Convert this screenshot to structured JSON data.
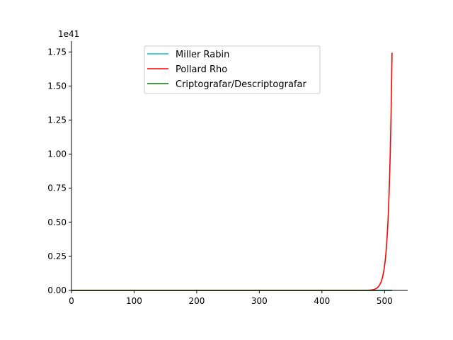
{
  "chart_data": {
    "type": "line",
    "title": "",
    "xlabel": "",
    "ylabel": "",
    "offset_text": "1e41",
    "xlim": [
      0,
      537
    ],
    "ylim": [
      0,
      1.83
    ],
    "xticks": [
      0,
      100,
      200,
      300,
      400,
      500
    ],
    "xtick_labels": [
      "0",
      "100",
      "200",
      "300",
      "400",
      "500"
    ],
    "yticks": [
      0,
      0.25,
      0.5,
      0.75,
      1.0,
      1.25,
      1.5,
      1.75
    ],
    "ytick_labels": [
      "0.00",
      "0.25",
      "0.50",
      "0.75",
      "1.00",
      "1.25",
      "1.50",
      "1.75"
    ],
    "grid": false,
    "legend_position": "top-center",
    "series": [
      {
        "name": "Miller Rabin",
        "color": "#17becf",
        "kind": "zero",
        "x_range": [
          0,
          512
        ]
      },
      {
        "name": "Pollard Rho",
        "color": "#ff0000",
        "kind": "exponential",
        "x_range": [
          0,
          512
        ],
        "final_value": 1.745
      },
      {
        "name": "Criptografar/Descriptografar",
        "color": "#008000",
        "kind": "zero",
        "x_range": [
          0,
          512
        ]
      }
    ]
  }
}
